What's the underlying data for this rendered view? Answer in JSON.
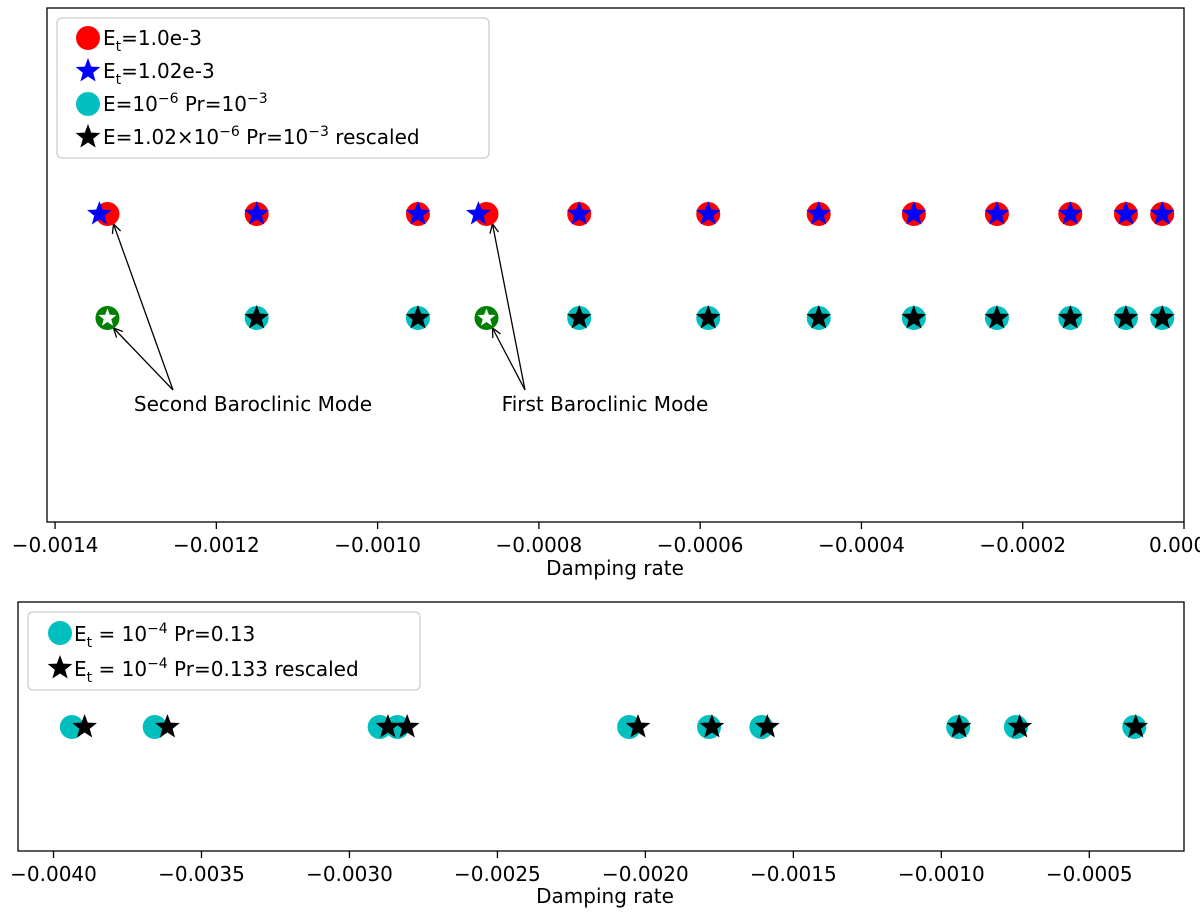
{
  "chart_data": [
    {
      "type": "scatter",
      "xlabel": "Damping rate",
      "ylabel": "",
      "xlim": [
        -0.00141,
        0.0
      ],
      "xticks": [
        "−0.0014",
        "−0.0012",
        "−0.0010",
        "−0.0008",
        "−0.0006",
        "−0.0004",
        "−0.0002",
        "0.0000"
      ],
      "xtick_values": [
        -0.0014,
        -0.0012,
        -0.001,
        -0.0008,
        -0.0006,
        -0.0004,
        -0.0002,
        0.0
      ],
      "legend_position": "upper-left",
      "series": [
        {
          "name": "E_t=1.0e-3",
          "legend": {
            "main": "E",
            "sub": "t",
            "rest": "=1.0e-3"
          },
          "marker": "circle",
          "color": "#ff0000",
          "row": 1,
          "x": [
            -0.001335,
            -0.00115,
            -0.00095,
            -0.000865,
            -0.00075,
            -0.00059,
            -0.000453,
            -0.000335,
            -0.000232,
            -0.000141,
            -7.2e-05,
            -2.7e-05
          ]
        },
        {
          "name": "E_t=1.02e-3",
          "legend": {
            "main": "E",
            "sub": "t",
            "rest": "=1.02e-3"
          },
          "marker": "star",
          "color": "#0000ff",
          "row": 1,
          "x": [
            -0.001345,
            -0.00115,
            -0.00095,
            -0.000875,
            -0.00075,
            -0.00059,
            -0.000453,
            -0.000335,
            -0.000232,
            -0.000141,
            -7.2e-05,
            -2.7e-05
          ]
        },
        {
          "name": "E=10^-6 Pr=10^-3",
          "legend": {
            "pre": "E=10",
            "sup1": "−6",
            "mid": " Pr=10",
            "sup2": "−3",
            "post": ""
          },
          "marker": "circle",
          "color": "#00bfbf",
          "row": 2,
          "x": [
            -0.00115,
            -0.00095,
            -0.00075,
            -0.00059,
            -0.000453,
            -0.000335,
            -0.000232,
            -0.000141,
            -7.2e-05,
            -2.7e-05
          ]
        },
        {
          "name": "E=1.02×10^-6 Pr=10^-3 rescaled",
          "legend": {
            "pre": "E=1.02×10",
            "sup1": "−6",
            "mid": " Pr=10",
            "sup2": "−3",
            "post": " rescaled"
          },
          "marker": "star",
          "color": "#000000",
          "row": 2,
          "x": [
            -0.00115,
            -0.00095,
            -0.00075,
            -0.00059,
            -0.000453,
            -0.000335,
            -0.000232,
            -0.000141,
            -7.2e-05,
            -2.7e-05
          ]
        }
      ],
      "highlighted": {
        "marker": "circle-with-white-star",
        "color": "#008000",
        "row": 2,
        "x": [
          -0.001335,
          -0.000865
        ]
      },
      "annotations": [
        {
          "text": "Second Baroclinic Mode",
          "targets_x": [
            -0.001335,
            -0.001335
          ],
          "targets_row": [
            1,
            2
          ]
        },
        {
          "text": "First Baroclinic Mode",
          "targets_x": [
            -0.000865,
            -0.000865
          ],
          "targets_row": [
            1,
            2
          ]
        }
      ]
    },
    {
      "type": "scatter",
      "xlabel": "Damping rate",
      "ylabel": "",
      "xlim": [
        -0.00412,
        -0.00018
      ],
      "xticks": [
        "−0.0040",
        "−0.0035",
        "−0.0030",
        "−0.0025",
        "−0.0020",
        "−0.0015",
        "−0.0010",
        "−0.0005"
      ],
      "xtick_values": [
        -0.004,
        -0.0035,
        -0.003,
        -0.0025,
        -0.002,
        -0.0015,
        -0.001,
        -0.0005
      ],
      "legend_position": "upper-left",
      "series": [
        {
          "name": "E_t = 10^-4 Pr=0.13",
          "legend": {
            "main": "E",
            "sub": "t",
            "mid": " = 10",
            "sup": "−4",
            "rest": " Pr=0.13"
          },
          "marker": "circle",
          "color": "#00bfbf",
          "row": 1,
          "x": [
            -0.003938,
            -0.003658,
            -0.002898,
            -0.002838,
            -0.002055,
            -0.001785,
            -0.001608,
            -0.000943,
            -0.000748,
            -0.000348
          ]
        },
        {
          "name": "E_t = 10^-4 Pr=0.133 rescaled",
          "legend": {
            "main": "E",
            "sub": "t",
            "mid": " = 10",
            "sup": "−4",
            "rest": " Pr=0.133 rescaled"
          },
          "marker": "star",
          "color": "#000000",
          "row": 1,
          "x": [
            -0.003895,
            -0.003615,
            -0.00287,
            -0.002805,
            -0.002025,
            -0.001775,
            -0.001588,
            -0.00094,
            -0.000735,
            -0.000343
          ]
        }
      ]
    }
  ]
}
